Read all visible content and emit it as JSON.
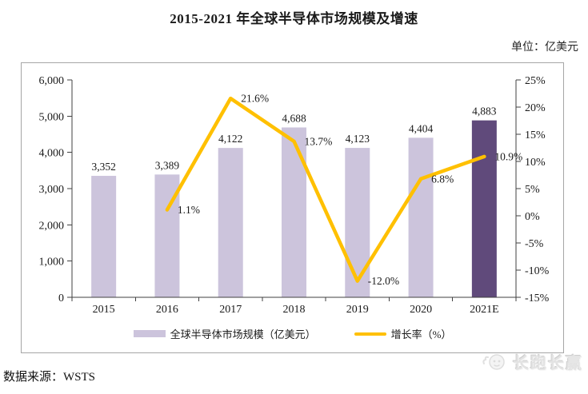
{
  "title": "2015-2021 年全球半导体市场规模及增速",
  "unit_label": "单位：亿美元",
  "chart_data": {
    "type": "bar",
    "subtype": "bar+line combo, dual axis",
    "title": "2015-2021 年全球半导体市场规模及增速",
    "categories": [
      "2015",
      "2016",
      "2017",
      "2018",
      "2019",
      "2020",
      "2021E"
    ],
    "series": [
      {
        "name": "全球半导体市场规模（亿美元）",
        "type": "bar",
        "axis": "left",
        "values": [
          3352,
          3389,
          4122,
          4688,
          4123,
          4404,
          4883
        ],
        "value_labels": [
          "3,352",
          "3,389",
          "4,122",
          "4,688",
          "4,123",
          "4,404",
          "4,883"
        ]
      },
      {
        "name": "增长率（%）",
        "type": "line",
        "axis": "right",
        "values": [
          null,
          1.1,
          21.6,
          13.7,
          -12.0,
          6.8,
          10.9
        ],
        "value_labels": [
          null,
          "1.1%",
          "21.6%",
          "13.7%",
          "-12.0%",
          "6.8%",
          "10.9%"
        ]
      }
    ],
    "left_axis": {
      "min": 0,
      "max": 6000,
      "step": 1000,
      "tick_labels": [
        "0",
        "1,000",
        "2,000",
        "3,000",
        "4,000",
        "5,000",
        "6,000"
      ]
    },
    "right_axis": {
      "min": -15,
      "max": 25,
      "step": 5,
      "tick_labels": [
        "-15%",
        "-10%",
        "-5%",
        "0%",
        "5%",
        "10%",
        "15%",
        "20%",
        "25%"
      ]
    },
    "colors": {
      "bar_default": "#CCC4DC",
      "bar_highlight": "#604A7B",
      "line": "#FFC000",
      "axis": "#404040",
      "frame_border": "#A6A6A6"
    },
    "highlight_index": 6,
    "grid": false,
    "legend_position": "bottom"
  },
  "legend": {
    "bars": "全球半导体市场规模（亿美元）",
    "line": "增长率（%）"
  },
  "footer": {
    "source": "数据来源：WSTS",
    "watermark": "长跑长赢"
  }
}
